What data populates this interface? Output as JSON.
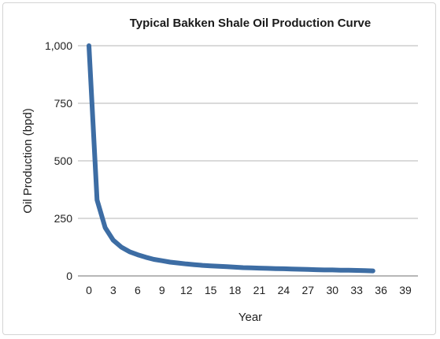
{
  "chart_data": {
    "type": "line",
    "title": "Typical Bakken Shale Oil Production Curve",
    "xlabel": "Year",
    "ylabel": "Oil Production (bpd)",
    "xlim": [
      0,
      40
    ],
    "ylim": [
      0,
      1000
    ],
    "x_ticks": [
      "0",
      "3",
      "6",
      "9",
      "12",
      "15",
      "18",
      "21",
      "24",
      "27",
      "30",
      "33",
      "36",
      "39"
    ],
    "y_ticks": [
      {
        "value": 0,
        "label": "0"
      },
      {
        "value": 250,
        "label": "250"
      },
      {
        "value": 500,
        "label": "500"
      },
      {
        "value": 750,
        "label": "750"
      },
      {
        "value": 1000,
        "label": "1,000"
      }
    ],
    "grid": "horizontal",
    "series": [
      {
        "color": "#3d6da4",
        "x": [
          0,
          1,
          2,
          3,
          4,
          5,
          6,
          7,
          8,
          9,
          10,
          11,
          12,
          13,
          14,
          15,
          16,
          17,
          18,
          19,
          20,
          21,
          22,
          23,
          24,
          25,
          26,
          27,
          28,
          29,
          30,
          31,
          32,
          33,
          34,
          35
        ],
        "y": [
          1000,
          330,
          210,
          155,
          125,
          105,
          92,
          81,
          72,
          66,
          60,
          56,
          52,
          49,
          46,
          44,
          42,
          40,
          38,
          36,
          35,
          34,
          33,
          32,
          31,
          30,
          29,
          28,
          27,
          26,
          26,
          25,
          25,
          24,
          23,
          22
        ]
      }
    ]
  }
}
